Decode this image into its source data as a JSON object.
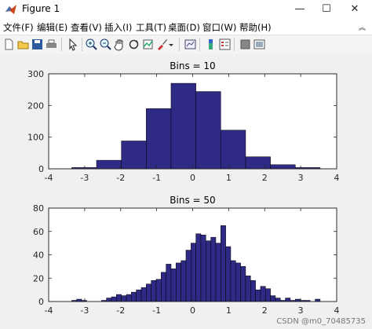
{
  "window": {
    "title": "Figure 1",
    "controls": {
      "minimize": "—",
      "maximize": "☐",
      "close": "✕"
    }
  },
  "menubar": {
    "items": [
      "文件(F)",
      "编辑(E)",
      "查看(V)",
      "插入(I)",
      "工具(T)",
      "桌面(D)",
      "窗口(W)",
      "帮助(H)"
    ],
    "collapse_icon": "double-chevron-up-icon"
  },
  "toolbar": {
    "icons": [
      "new-figure-icon",
      "open-file-icon",
      "save-icon",
      "print-icon",
      "edit-plot-arrow-icon",
      "zoom-in-icon",
      "zoom-out-icon",
      "pan-hand-icon",
      "rotate-3d-icon",
      "data-cursor-icon",
      "brush-icon",
      "brush-dropdown-icon",
      "link-plot-icon",
      "insert-colorbar-icon",
      "insert-legend-icon",
      "hide-plot-tools-icon",
      "show-plot-tools-icon"
    ]
  },
  "colors": {
    "bar_fill": "#2e2a86",
    "bar_edge": "#000000",
    "figure_bg": "#f0f0f0",
    "axes_bg": "#ffffff"
  },
  "watermark": "CSDN @m0_70485735",
  "chart_data": [
    {
      "type": "bar",
      "title": "Bins = 10",
      "xlabel": "",
      "ylabel": "",
      "xlim": [
        -4,
        4
      ],
      "ylim": [
        0,
        300
      ],
      "xticks": [
        -4,
        -3,
        -2,
        -1,
        0,
        1,
        2,
        3,
        4
      ],
      "yticks": [
        0,
        100,
        200,
        300
      ],
      "bin_edges": [
        -3.36,
        -2.67,
        -1.98,
        -1.29,
        -0.6,
        0.09,
        0.78,
        1.47,
        2.16,
        2.85,
        3.54
      ],
      "values": [
        4,
        27,
        88,
        190,
        270,
        244,
        122,
        38,
        13,
        4
      ]
    },
    {
      "type": "bar",
      "title": "Bins = 50",
      "xlabel": "",
      "ylabel": "",
      "xlim": [
        -4,
        4
      ],
      "ylim": [
        0,
        80
      ],
      "xticks": [
        -4,
        -3,
        -2,
        -1,
        0,
        1,
        2,
        3,
        4
      ],
      "yticks": [
        0,
        20,
        40,
        60,
        80
      ],
      "bin_start": -3.36,
      "bin_width": 0.138,
      "values": [
        1,
        2,
        1,
        0,
        0,
        0,
        1,
        3,
        4,
        6,
        5,
        6,
        8,
        10,
        12,
        15,
        18,
        19,
        25,
        32,
        28,
        33,
        35,
        44,
        50,
        58,
        57,
        52,
        55,
        50,
        65,
        47,
        35,
        33,
        30,
        22,
        18,
        10,
        13,
        11,
        5,
        3,
        1,
        3,
        1,
        2,
        1,
        1,
        0,
        2
      ]
    }
  ]
}
